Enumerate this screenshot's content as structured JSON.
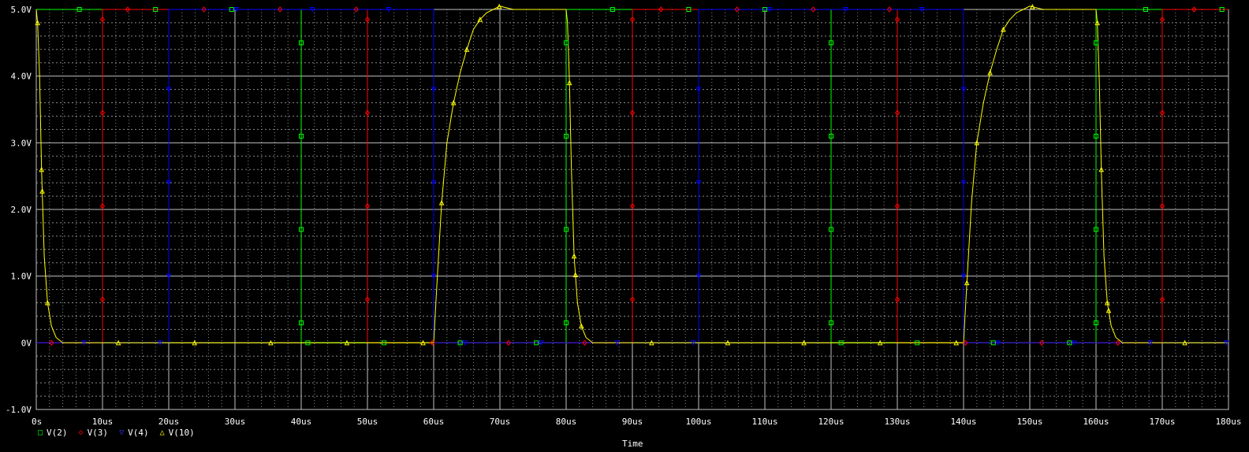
{
  "chart_data": {
    "type": "line",
    "xlabel": "Time",
    "ylabel": "",
    "x_unit": "us",
    "y_unit": "V",
    "xlim": [
      0,
      180
    ],
    "ylim": [
      -1.0,
      5.0
    ],
    "grid": true,
    "legend_position": "bottom-left",
    "x_ticks": [
      {
        "value": 0,
        "label": "0s"
      },
      {
        "value": 10,
        "label": "10us"
      },
      {
        "value": 20,
        "label": "20us"
      },
      {
        "value": 30,
        "label": "30us"
      },
      {
        "value": 40,
        "label": "40us"
      },
      {
        "value": 50,
        "label": "50us"
      },
      {
        "value": 60,
        "label": "60us"
      },
      {
        "value": 70,
        "label": "70us"
      },
      {
        "value": 80,
        "label": "80us"
      },
      {
        "value": 90,
        "label": "90us"
      },
      {
        "value": 100,
        "label": "100us"
      },
      {
        "value": 110,
        "label": "110us"
      },
      {
        "value": 120,
        "label": "120us"
      },
      {
        "value": 130,
        "label": "130us"
      },
      {
        "value": 140,
        "label": "140us"
      },
      {
        "value": 150,
        "label": "150us"
      },
      {
        "value": 160,
        "label": "160us"
      },
      {
        "value": 170,
        "label": "170us"
      },
      {
        "value": 180,
        "label": "180us"
      }
    ],
    "y_ticks": [
      {
        "value": 5.0,
        "label": "5.0V"
      },
      {
        "value": 4.0,
        "label": "4.0V"
      },
      {
        "value": 3.0,
        "label": "3.0V"
      },
      {
        "value": 2.0,
        "label": "2.0V"
      },
      {
        "value": 1.0,
        "label": "1.0V"
      },
      {
        "value": 0.0,
        "label": "0V"
      },
      {
        "value": -1.0,
        "label": "-1.0V"
      }
    ],
    "series": [
      {
        "name": "V(2)",
        "color": "#00ff00",
        "marker": "square",
        "x": [
          0,
          40,
          40,
          80,
          80,
          120,
          120,
          160,
          160,
          180
        ],
        "y": [
          5,
          5,
          0,
          0,
          5,
          5,
          0,
          0,
          5,
          5
        ]
      },
      {
        "name": "V(3)",
        "color": "#ff0000",
        "marker": "diamond",
        "x": [
          0,
          10,
          10,
          50,
          50,
          90,
          90,
          130,
          130,
          170,
          170,
          180
        ],
        "y": [
          0,
          0,
          5,
          5,
          0,
          0,
          5,
          5,
          0,
          0,
          5,
          5
        ]
      },
      {
        "name": "V(4)",
        "color": "#0000ff",
        "marker": "triangle-down",
        "x": [
          0,
          20,
          20,
          60,
          60,
          100,
          100,
          140,
          140,
          180
        ],
        "y": [
          0,
          0,
          5,
          5,
          0,
          0,
          5,
          5,
          0,
          0
        ]
      },
      {
        "name": "V(10)",
        "color": "#ffff00",
        "marker": "triangle",
        "x": [
          0,
          0.2,
          0.5,
          0.8,
          1.2,
          1.7,
          2.3,
          3.0,
          4.0,
          60,
          60.5,
          61.2,
          62,
          63,
          64,
          65,
          66,
          67,
          68,
          69,
          70,
          72,
          74,
          80,
          80.2,
          80.5,
          80.8,
          81.2,
          81.7,
          82.3,
          83,
          84,
          140,
          140.5,
          141.2,
          142,
          143,
          144,
          145,
          146,
          147,
          148,
          149,
          150,
          152,
          154,
          160,
          160.2,
          160.5,
          160.8,
          161.2,
          161.7,
          162.3,
          163,
          164,
          180
        ],
        "y": [
          5.0,
          4.8,
          4.0,
          2.6,
          1.3,
          0.6,
          0.25,
          0.08,
          0.0,
          0.0,
          0.9,
          2.1,
          3.0,
          3.6,
          4.05,
          4.4,
          4.7,
          4.85,
          4.95,
          5.0,
          5.05,
          5.0,
          5.0,
          5.0,
          4.8,
          3.9,
          2.6,
          1.3,
          0.6,
          0.25,
          0.08,
          0.0,
          0.0,
          0.9,
          2.1,
          3.0,
          3.6,
          4.05,
          4.4,
          4.7,
          4.85,
          4.95,
          5.0,
          5.05,
          5.0,
          5.0,
          5.0,
          4.8,
          3.9,
          2.6,
          1.3,
          0.6,
          0.25,
          0.08,
          0.0,
          0.0
        ]
      }
    ]
  },
  "legend": {
    "items": [
      {
        "symbol": "□",
        "label": "V(2)",
        "color": "#00ff00"
      },
      {
        "symbol": "◇",
        "label": "V(3)",
        "color": "#ff0000"
      },
      {
        "symbol": "▽",
        "label": "V(4)",
        "color": "#0000ff"
      },
      {
        "symbol": "△",
        "label": "V(10)",
        "color": "#ffff00"
      }
    ]
  },
  "colors": {
    "background": "#000000",
    "major_grid": "#bfbfbf",
    "minor_grid": "#8a8a8a",
    "text": "#ffffff"
  }
}
